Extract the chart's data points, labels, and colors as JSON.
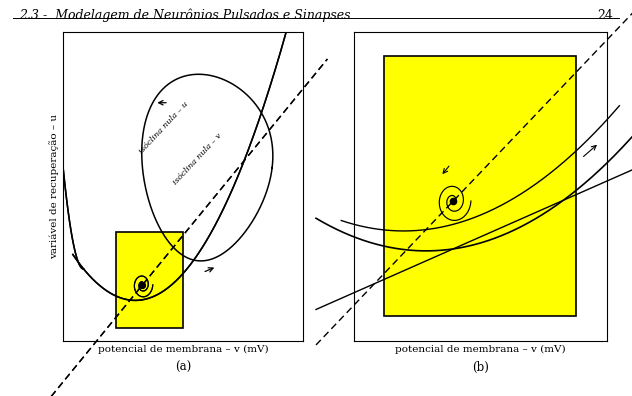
{
  "header_text": "2.3 -  Modelagem de Neurônios Pulsados e Sinapses",
  "header_number": "24",
  "header_fontsize": 9,
  "fig_bg": "#ffffff",
  "panel_a_xlabel": "potencial de membrana – v (mV)",
  "panel_a_ylabel": "variável de recuperação – u",
  "panel_a_label": "(a)",
  "panel_b_xlabel": "potencial de membrana – v (mV)",
  "panel_b_label": "(b)",
  "label_nullcline_u": "isóclina nula – u",
  "label_nullcline_v": "isóclina nula – v",
  "yellow_color": "#ffff00",
  "line_color": "#000000",
  "axis_fontsize": 7.5,
  "caption_fontsize": 8.5
}
